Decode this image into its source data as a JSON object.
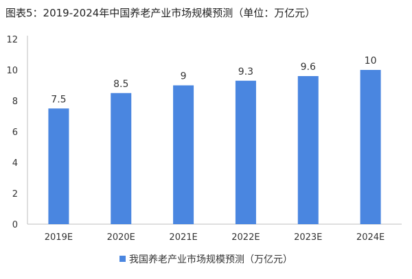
{
  "chart_data": {
    "type": "bar",
    "title": "图表5：2019-2024年中国养老产业市场规模预测（单位：万亿元）",
    "categories": [
      "2019E",
      "2020E",
      "2021E",
      "2022E",
      "2023E",
      "2024E"
    ],
    "series": [
      {
        "name": "我国养老产业市场规模预测（万亿元）",
        "values": [
          7.5,
          8.5,
          9,
          9.3,
          9.6,
          10
        ]
      }
    ],
    "data_labels": [
      "7.5",
      "8.5",
      "9",
      "9.3",
      "9.6",
      "10"
    ],
    "ylim": [
      0,
      12
    ],
    "yticks": [
      0,
      2,
      4,
      6,
      8,
      10,
      12
    ],
    "xlabel": "",
    "ylabel": "",
    "grid": false,
    "legend_position": "bottom",
    "colors": {
      "bar": "#4a86e0",
      "axis": "#bfbfbf",
      "text": "#333333"
    }
  }
}
